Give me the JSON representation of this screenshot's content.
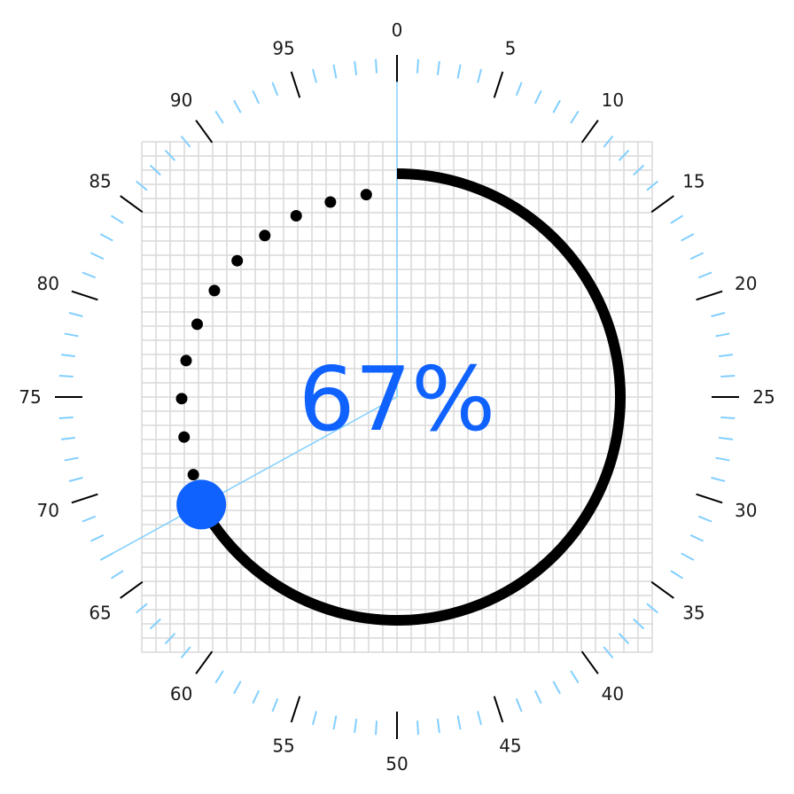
{
  "dial": {
    "value_percent": 67,
    "value_text": "67%",
    "scale_min": 0,
    "scale_max": 100,
    "major_step": 5,
    "minor_step": 1,
    "major_labels": [
      "0",
      "5",
      "10",
      "15",
      "20",
      "25",
      "30",
      "35",
      "40",
      "45",
      "50",
      "55",
      "60",
      "65",
      "70",
      "75",
      "80",
      "85",
      "90",
      "95"
    ],
    "dotted_trail_count": 11,
    "colors": {
      "accent": "#0f62fe",
      "arc": "#000000",
      "minor_tick": "#82cfff",
      "major_tick": "#000000",
      "grid": "#d9d9d9",
      "pointer_line": "#82cfff",
      "label": "#1a1a1a"
    }
  }
}
